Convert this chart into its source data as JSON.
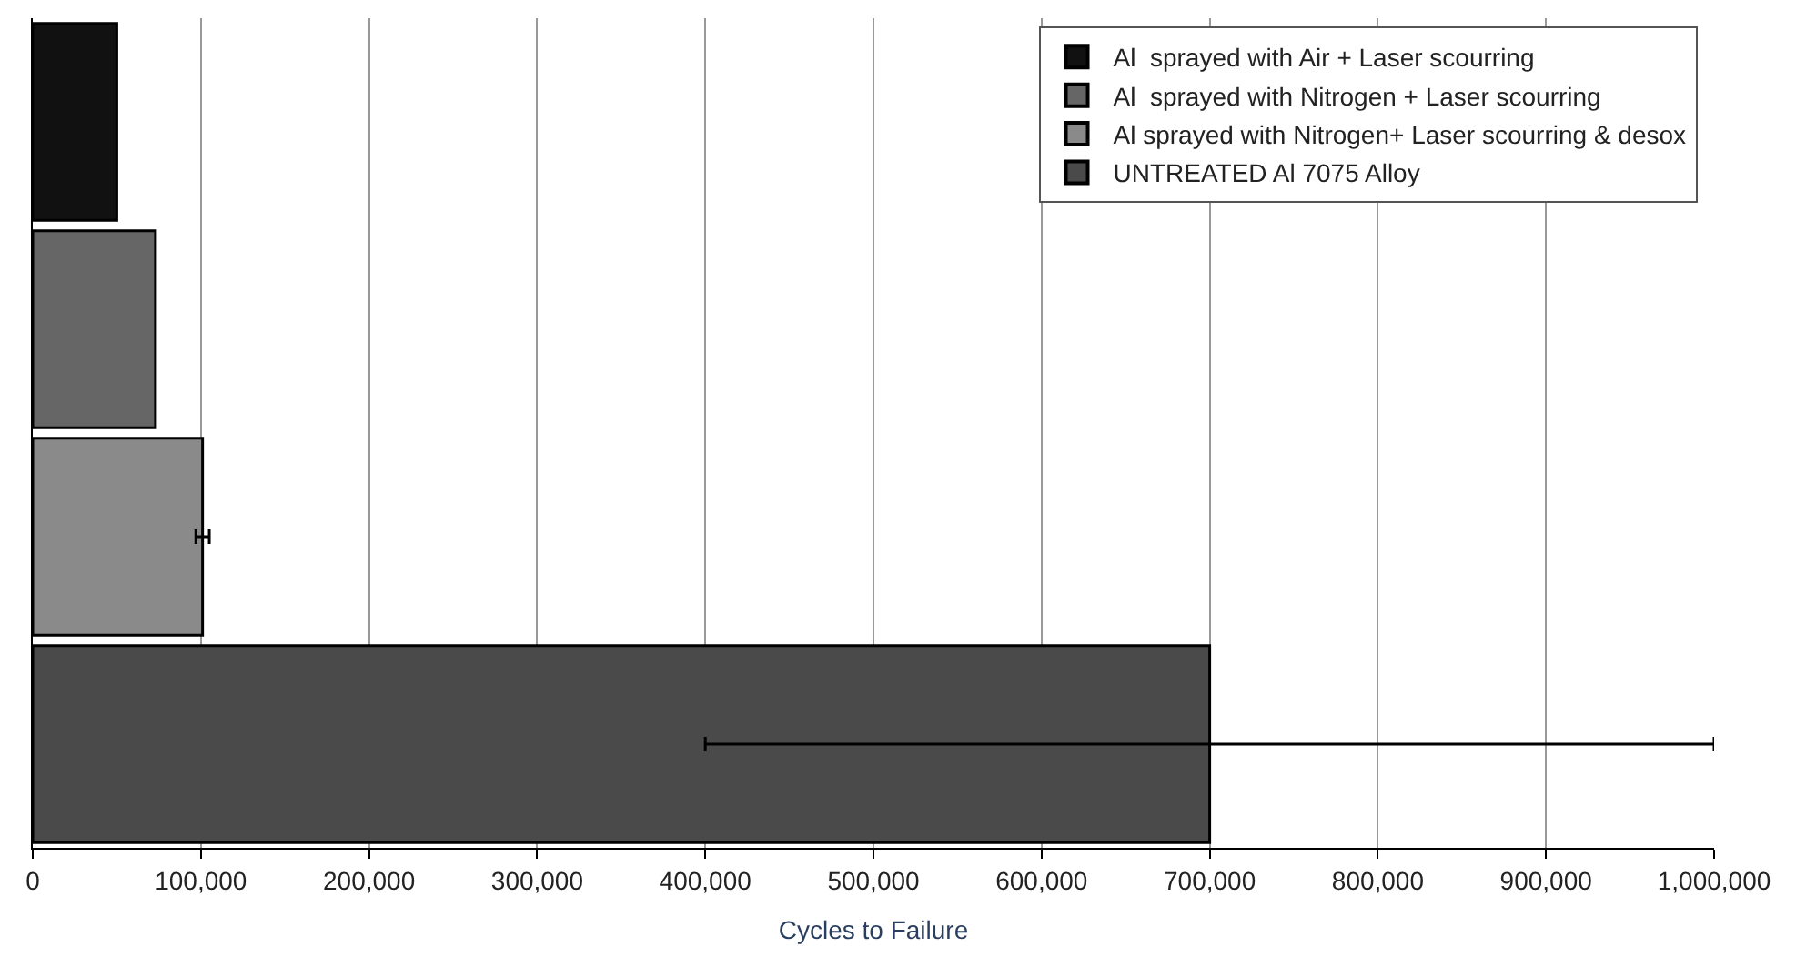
{
  "chart_data": {
    "type": "bar",
    "orientation": "horizontal",
    "xlabel": "Cycles to Failure",
    "categories": [
      null,
      null,
      null,
      null
    ],
    "series": [
      {
        "name": "Al  sprayed with Air + Laser scourring",
        "color": "#111111",
        "values": [
          50000,
          null,
          null,
          null
        ]
      },
      {
        "name": "Al  sprayed with Nitrogen + Laser scourring",
        "color": "#666666",
        "values": [
          null,
          73000,
          null,
          null
        ]
      },
      {
        "name": "Al sprayed with Nitrogen+ Laser scourring & desox",
        "color": "#8a8a8a",
        "values": [
          null,
          null,
          101000,
          null
        ],
        "errors": [
          null,
          null,
          4000,
          null
        ]
      },
      {
        "name": "UNTREATED Al 7075 Alloy",
        "color": "#4a4a4a",
        "values": [
          null,
          null,
          null,
          700000
        ],
        "errors": [
          null,
          null,
          null,
          300000
        ]
      }
    ],
    "xlim": [
      0,
      1000000
    ],
    "xticks": [
      0,
      {
        "value": 100000,
        "label": "100,000"
      },
      {
        "value": 200000,
        "label": "200,000"
      },
      {
        "value": 300000,
        "label": "300,000"
      },
      {
        "value": 400000,
        "label": "400,000"
      },
      {
        "value": 500000,
        "label": "500,000"
      },
      {
        "value": 600000,
        "label": "600,000"
      },
      {
        "value": 700000,
        "label": "700,000"
      },
      {
        "value": 800000,
        "label": "800,000"
      },
      {
        "value": 900000,
        "label": "900,000"
      },
      {
        "value": 1000000,
        "label": "1,000,000"
      }
    ],
    "grid": "x",
    "legend": "top right",
    "tick_labels": "x"
  }
}
